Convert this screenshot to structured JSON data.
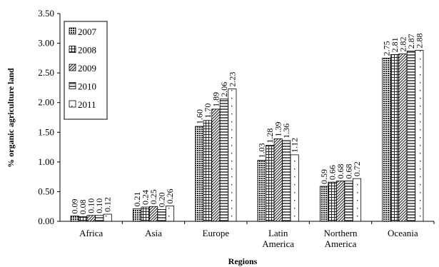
{
  "chart_data": {
    "type": "bar",
    "title": "",
    "xlabel": "Regions",
    "ylabel": "% organic agriculture land",
    "ylim": [
      0,
      3.5
    ],
    "yticks": [
      "0.00",
      "0.50",
      "1.00",
      "1.50",
      "2.00",
      "2.50",
      "3.00",
      "3.50"
    ],
    "categories": [
      [
        "Africa"
      ],
      [
        "Asia"
      ],
      [
        "Europe"
      ],
      [
        "Latin",
        "America"
      ],
      [
        "Northern",
        "America"
      ],
      [
        "Oceania"
      ]
    ],
    "grid": false,
    "legend_position": "top-left",
    "series": [
      {
        "name": "2007",
        "pattern": "dots-dense",
        "values": [
          0.09,
          0.21,
          1.6,
          1.03,
          0.59,
          2.75
        ],
        "labels": [
          "0.09",
          "0.21",
          "1.60",
          "1.03",
          "0.59",
          "2.75"
        ]
      },
      {
        "name": "2008",
        "pattern": "grid",
        "values": [
          0.08,
          0.24,
          1.7,
          1.28,
          0.66,
          2.81
        ],
        "labels": [
          "0.08",
          "0.24",
          "1.70",
          "1.28",
          "0.66",
          "2.81"
        ]
      },
      {
        "name": "2009",
        "pattern": "diagonal",
        "values": [
          0.1,
          0.25,
          1.89,
          1.39,
          0.68,
          2.82
        ],
        "labels": [
          "0.10",
          "0.25",
          "1.89",
          "1.39",
          "0.68",
          "2.82"
        ]
      },
      {
        "name": "2010",
        "pattern": "horizontal",
        "values": [
          0.1,
          0.2,
          2.06,
          1.36,
          0.68,
          2.87
        ],
        "labels": [
          "0.10",
          "0.20",
          "2.06",
          "1.36",
          "0.68",
          "2.87"
        ]
      },
      {
        "name": "2011",
        "pattern": "dots-sparse",
        "values": [
          0.12,
          0.26,
          2.23,
          1.12,
          0.72,
          2.88
        ],
        "labels": [
          "0.12",
          "0.26",
          "2.23",
          "1.12",
          "0.72",
          "2.88"
        ]
      }
    ]
  }
}
